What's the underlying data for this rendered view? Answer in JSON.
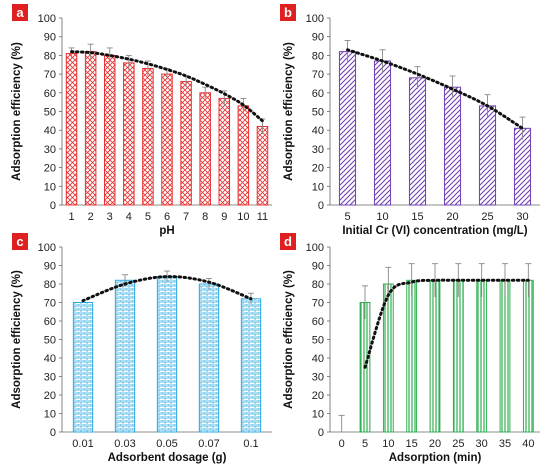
{
  "chart_data": [
    {
      "type": "bar",
      "panel": "a",
      "categories": [
        "1",
        "2",
        "3",
        "4",
        "5",
        "6",
        "7",
        "8",
        "9",
        "10",
        "11"
      ],
      "values": [
        81,
        82,
        80,
        76,
        73,
        70,
        66,
        60,
        57,
        53,
        42
      ],
      "errors": [
        3,
        4,
        4,
        4,
        4,
        3,
        3,
        3,
        4,
        4,
        4
      ],
      "trend": [
        82,
        81.5,
        80,
        78,
        75.5,
        72.5,
        69,
        64.5,
        59.5,
        53.5,
        45
      ],
      "xlabel": "pH",
      "ylabel": "Adsorption efficiency (%)",
      "ylim": [
        0,
        100
      ],
      "yticks": [
        0,
        10,
        20,
        30,
        40,
        50,
        60,
        70,
        80,
        90,
        100
      ],
      "colors": {
        "bar": "#e83030",
        "pattern": "crosshatch"
      }
    },
    {
      "type": "bar",
      "panel": "b",
      "categories": [
        "5",
        "10",
        "15",
        "20",
        "25",
        "30"
      ],
      "values": [
        82,
        77,
        68,
        63,
        53,
        41
      ],
      "errors": [
        6,
        6,
        6,
        6,
        6,
        6
      ],
      "trend": [
        83,
        77,
        70,
        62,
        53,
        41
      ],
      "xlabel": "Initial Cr (VI) concentration (mg/L)",
      "ylabel": "Adsorption efficiency (%)",
      "ylim": [
        0,
        100
      ],
      "yticks": [
        0,
        10,
        20,
        30,
        40,
        50,
        60,
        70,
        80,
        90,
        100
      ],
      "colors": {
        "bar": "#7040b0",
        "pattern": "diagonal"
      }
    },
    {
      "type": "bar",
      "panel": "c",
      "categories": [
        "0.01",
        "0.03",
        "0.05",
        "0.07",
        "0.1"
      ],
      "values": [
        70,
        82,
        84,
        80,
        72
      ],
      "errors": [
        0,
        3,
        3,
        3,
        3
      ],
      "trend": [
        71,
        80,
        84,
        81,
        72
      ],
      "xlabel": "Adsorbent dosage (g)",
      "ylabel": "Adsorption efficiency (%)",
      "ylim": [
        0,
        100
      ],
      "yticks": [
        0,
        10,
        20,
        30,
        40,
        50,
        60,
        70,
        80,
        90,
        100
      ],
      "colors": {
        "bar": "#2aa8e0",
        "pattern": "brick"
      }
    },
    {
      "type": "bar",
      "panel": "d",
      "categories": [
        "0",
        "5",
        "10",
        "15",
        "20",
        "25",
        "30",
        "35",
        "40"
      ],
      "values": [
        0,
        70,
        80,
        82,
        82,
        82,
        82,
        82,
        82
      ],
      "errors": [
        9,
        9,
        9,
        9,
        9,
        9,
        9,
        9,
        9
      ],
      "trend": [
        null,
        35,
        74,
        81,
        82,
        82,
        82,
        82,
        82
      ],
      "xlabel": "Adsorption (min)",
      "ylabel": "Adsorption efficiency (%)",
      "ylim": [
        0,
        100
      ],
      "yticks": [
        0,
        10,
        20,
        30,
        40,
        50,
        60,
        70,
        80,
        90,
        100
      ],
      "colors": {
        "bar": "#30b050",
        "pattern": "vertical"
      }
    }
  ],
  "panel_badge_color": "#e02020"
}
